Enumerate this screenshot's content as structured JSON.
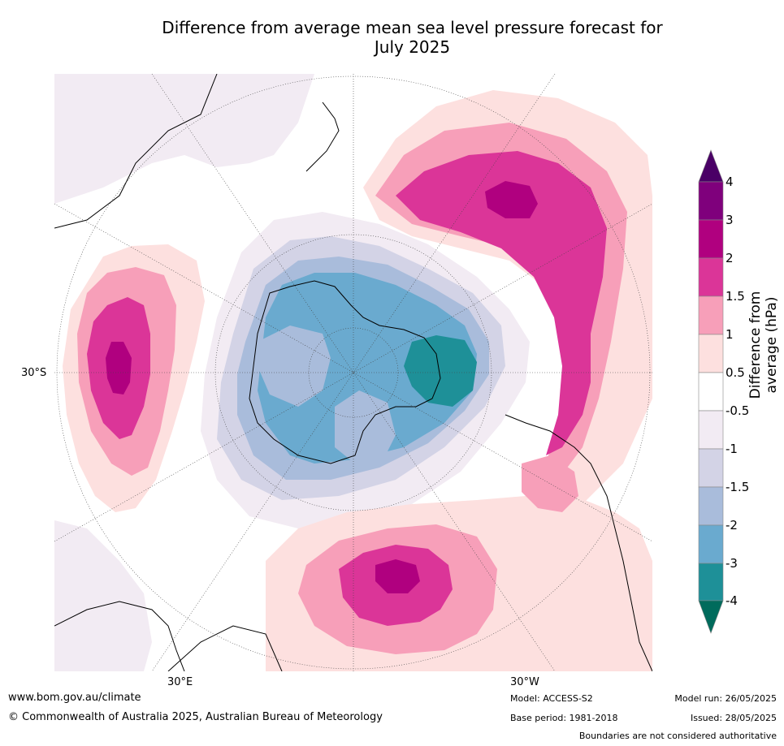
{
  "title_line1": "Difference from average mean sea level pressure forecast for",
  "title_line2": "July 2025",
  "map": {
    "lat_label": "30°S",
    "lon_label_left": "30°E",
    "lon_label_right": "30°W"
  },
  "colorbar": {
    "title": "Difference from average (hPa)",
    "ticks": [
      "4",
      "3",
      "2",
      "1.5",
      "1",
      "0.5",
      "-0.5",
      "-1",
      "-1.5",
      "-2",
      "-3",
      "-4"
    ],
    "colors": {
      "gt4": "#4a0066",
      "3_4": "#7f007c",
      "2_3": "#b0007f",
      "1.5_2": "#db3598",
      "1_1.5": "#f79fb9",
      "0.5_1": "#fde0df",
      "m0.5_0.5": "#ffffff",
      "m1_m0.5": "#f2ebf3",
      "m1.5_m1": "#d3d3e6",
      "m2_m1.5": "#a9bcdb",
      "m3_m2": "#6aaacf",
      "m4_m3": "#1e9098",
      "lt_m4": "#006b5c"
    }
  },
  "footer": {
    "url": "www.bom.gov.au/climate",
    "copyright": "© Commonwealth of Australia 2025, Australian Bureau of Meteorology",
    "model": "Model: ACCESS-S2",
    "base_period": "Base period: 1981-2018",
    "model_run": "Model run: 26/05/2025",
    "issued": "Issued: 28/05/2025",
    "disclaimer": "Boundaries are not considered authoritative"
  }
}
